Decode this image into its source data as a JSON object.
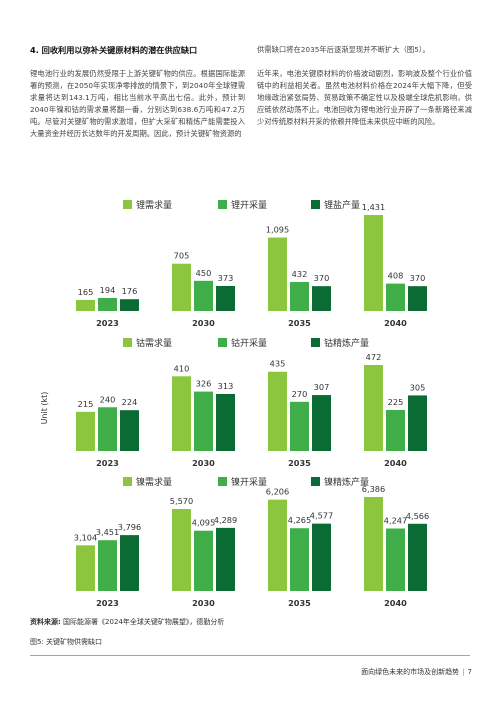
{
  "section": {
    "heading": "4. 回收利用以弥补关键原材料的潜在供应缺口",
    "left_paragraph": "锂电池行业的发展仍然受限于上游关键矿物的供应。根据国际能源署的预测，在2050年实现净零排放的情景下，到2040年全球锂需求量将达到143.1万吨，相比当前水平高出七倍。此外，预计到2040年镍和钴的需求量将翻一番，分别达到638.6万吨和47.2万吨。尽管对关键矿物的需求激增，但扩大采矿和精炼产能需要投入大量资金并经历长达数年的开发周期。因此，预计关键矿物资源的",
    "right_paragraph_1": "供需缺口将在2035年后逐渐显现并不断扩大（图5）。",
    "right_paragraph_2": "近年来，电池关键原材料的价格波动剧烈，影响波及整个行业价值链中的利益相关者。虽然电池材料价格在2024年大幅下降，但受地缘政治紧张局势、贸易政策不确定性以及极端全球危机影响，供应链依然动荡不止。电池回收为锂电池行业开辟了一条新路径来减少对传统原材料开采的依赖并降低未来供应中断的风险。"
  },
  "colors": {
    "demand": "#8cc63f",
    "mining": "#3fae49",
    "refining": "#0b6b34"
  },
  "chart_data": [
    {
      "type": "bar",
      "ylabel": "",
      "categories": [
        "2023",
        "2030",
        "2035",
        "2040"
      ],
      "series": [
        {
          "name": "锂需求量",
          "values": [
            165,
            705,
            1095,
            1431
          ]
        },
        {
          "name": "锂开采量",
          "values": [
            194,
            450,
            432,
            408
          ]
        },
        {
          "name": "锂盐产量",
          "values": [
            176,
            373,
            370,
            370
          ]
        }
      ],
      "ylim": [
        0,
        1431
      ],
      "labels": [
        [
          "165",
          "194",
          "176"
        ],
        [
          "705",
          "450",
          "373"
        ],
        [
          "1,095",
          "432",
          "370"
        ],
        [
          "1,431",
          "408",
          "370"
        ]
      ]
    },
    {
      "type": "bar",
      "ylabel": "Unit (kt)",
      "categories": [
        "2023",
        "2030",
        "2035",
        "2040"
      ],
      "series": [
        {
          "name": "钴需求量",
          "values": [
            215,
            410,
            435,
            472
          ]
        },
        {
          "name": "钴开采量",
          "values": [
            240,
            326,
            270,
            225
          ]
        },
        {
          "name": "钴精炼产量",
          "values": [
            224,
            313,
            307,
            305
          ]
        }
      ],
      "ylim": [
        0,
        472
      ],
      "labels": [
        [
          "215",
          "240",
          "224"
        ],
        [
          "410",
          "326",
          "313"
        ],
        [
          "435",
          "270",
          "307"
        ],
        [
          "472",
          "225",
          "305"
        ]
      ]
    },
    {
      "type": "bar",
      "ylabel": "",
      "categories": [
        "2023",
        "2030",
        "2035",
        "2040"
      ],
      "series": [
        {
          "name": "镍需求量",
          "values": [
            3104,
            5570,
            6206,
            6386
          ]
        },
        {
          "name": "镍开采量",
          "values": [
            3451,
            4095,
            4265,
            4247
          ]
        },
        {
          "name": "镍精炼产量",
          "values": [
            3796,
            4289,
            4577,
            4566
          ]
        }
      ],
      "ylim": [
        0,
        6386
      ],
      "labels": [
        [
          "3,104",
          "3,451",
          "3,796"
        ],
        [
          "5,570",
          "4,095",
          "4,289"
        ],
        [
          "6,206",
          "4,265",
          "4,577"
        ],
        [
          "6,386",
          "4,247",
          "4,566"
        ]
      ]
    }
  ],
  "source": {
    "label": "资料来源:",
    "text": "国际能源署《2024年全球关键矿物展望》，德勤分析"
  },
  "figure_caption": "图5: 关键矿物供需缺口",
  "footer": {
    "text": "面向绿色未来的市场及创新趋势",
    "page": "7"
  }
}
